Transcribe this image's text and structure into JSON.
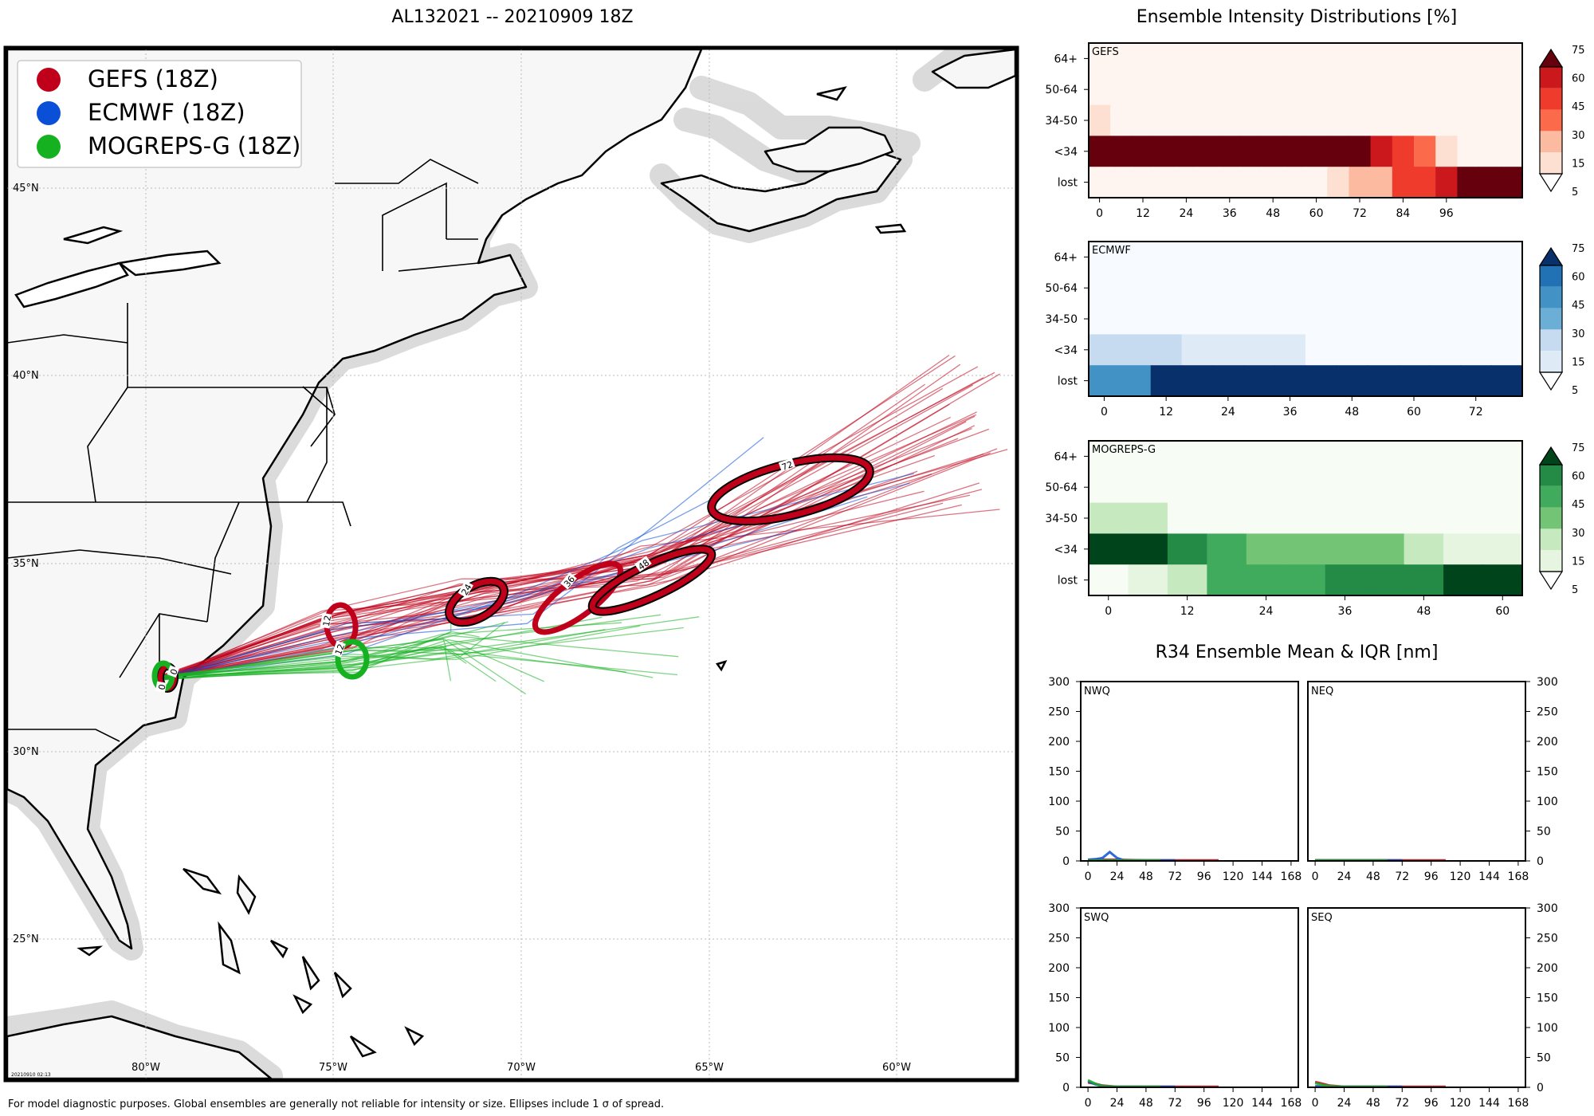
{
  "map": {
    "title": "AL132021 -- 20210909 18Z",
    "legend": [
      {
        "label": "GEFS (18Z)",
        "color": "#c0001a"
      },
      {
        "label": "ECMWF (18Z)",
        "color": "#0a4fd8"
      },
      {
        "label": "MOGREPS-G (18Z)",
        "color": "#16b121"
      }
    ],
    "lon_labels": [
      "80°W",
      "75°W",
      "70°W",
      "65°W",
      "60°W"
    ],
    "lat_labels": [
      "45°N",
      "40°N",
      "35°N",
      "30°N",
      "25°N"
    ],
    "ellipse_labels": [
      "0",
      "0",
      "12",
      "12",
      "24",
      "36",
      "48",
      "72"
    ],
    "timestamp": "20210910 02:13",
    "footnote": "For model diagnostic purposes. Global ensembles are generally not reliable for intensity or size. Ellipses include 1 σ of spread."
  },
  "colors": {
    "gefs": "#c0001a",
    "ecmwf": "#0a4fd8",
    "mogreps": "#16b121",
    "land": "#f7f7f7",
    "coast_shadow": "#c8c8c8"
  },
  "chart_data": [
    {
      "type": "heatmap",
      "title": "Ensemble Intensity Distributions [%]",
      "model": "GEFS",
      "rows": [
        "64+",
        "50-64",
        "34-50",
        "<34",
        "lost"
      ],
      "x_ticks": [
        "0",
        "12",
        "24",
        "36",
        "48",
        "60",
        "72",
        "84",
        "96"
      ],
      "x_range": [
        -3,
        117
      ],
      "bins_hours": [
        [
          -3,
          3
        ],
        [
          3,
          9
        ],
        [
          9,
          15
        ],
        [
          15,
          21
        ],
        [
          21,
          27
        ],
        [
          27,
          33
        ],
        [
          33,
          39
        ],
        [
          39,
          45
        ],
        [
          45,
          51
        ],
        [
          51,
          57
        ],
        [
          57,
          63
        ],
        [
          63,
          69
        ],
        [
          69,
          75
        ],
        [
          75,
          81
        ],
        [
          81,
          87
        ],
        [
          87,
          93
        ],
        [
          93,
          99
        ],
        [
          99,
          105
        ],
        [
          105,
          111
        ],
        [
          111,
          117
        ]
      ],
      "values": {
        "64+": [
          0,
          0,
          0,
          0,
          0,
          0,
          0,
          0,
          0,
          0,
          0,
          0,
          0,
          0,
          0,
          0,
          0,
          0,
          0,
          0
        ],
        "50-64": [
          0,
          0,
          0,
          0,
          0,
          0,
          0,
          0,
          0,
          0,
          0,
          0,
          0,
          0,
          0,
          0,
          0,
          0,
          0,
          0
        ],
        "34-50": [
          10,
          0,
          0,
          0,
          0,
          0,
          0,
          0,
          0,
          0,
          0,
          0,
          0,
          0,
          0,
          0,
          0,
          0,
          0,
          0
        ],
        "<34": [
          90,
          100,
          100,
          100,
          100,
          100,
          100,
          100,
          100,
          100,
          100,
          100,
          100,
          70,
          55,
          40,
          10,
          0,
          0,
          0
        ],
        "lost": [
          0,
          0,
          0,
          0,
          0,
          0,
          0,
          0,
          0,
          0,
          0,
          10,
          20,
          20,
          55,
          55,
          70,
          90,
          100,
          100
        ]
      },
      "colorbar_ticks": [
        "5",
        "15",
        "30",
        "45",
        "60",
        "75"
      ],
      "cmap": "Reds"
    },
    {
      "type": "heatmap",
      "model": "ECMWF",
      "rows": [
        "64+",
        "50-64",
        "34-50",
        "<34",
        "lost"
      ],
      "x_ticks": [
        "0",
        "12",
        "24",
        "36",
        "48",
        "60",
        "72"
      ],
      "x_range": [
        -3,
        81
      ],
      "bins_hours": [
        [
          -3,
          3
        ],
        [
          3,
          9
        ],
        [
          9,
          15
        ],
        [
          15,
          21
        ],
        [
          21,
          27
        ],
        [
          27,
          33
        ],
        [
          33,
          39
        ],
        [
          39,
          45
        ],
        [
          45,
          51
        ],
        [
          51,
          57
        ],
        [
          57,
          63
        ],
        [
          63,
          69
        ],
        [
          69,
          75
        ],
        [
          75,
          81
        ]
      ],
      "values": {
        "64+": [
          0,
          0,
          0,
          0,
          0,
          0,
          0,
          0,
          0,
          0,
          0,
          0,
          0,
          0
        ],
        "50-64": [
          0,
          0,
          0,
          0,
          0,
          0,
          0,
          0,
          0,
          0,
          0,
          0,
          0,
          0
        ],
        "34-50": [
          0,
          0,
          0,
          0,
          0,
          0,
          0,
          0,
          0,
          0,
          0,
          0,
          0,
          0
        ],
        "<34": [
          25,
          25,
          25,
          10,
          10,
          10,
          10,
          0,
          0,
          0,
          0,
          0,
          0,
          0
        ],
        "lost": [
          55,
          55,
          100,
          100,
          100,
          100,
          100,
          100,
          100,
          100,
          100,
          100,
          100,
          100
        ]
      },
      "colorbar_ticks": [
        "5",
        "15",
        "30",
        "45",
        "60",
        "75"
      ],
      "cmap": "Blues"
    },
    {
      "type": "heatmap",
      "model": "MOGREPS-G",
      "rows": [
        "64+",
        "50-64",
        "34-50",
        "<34",
        "lost"
      ],
      "x_ticks": [
        "0",
        "12",
        "24",
        "36",
        "48",
        "60"
      ],
      "x_range": [
        -3,
        63
      ],
      "bins_hours": [
        [
          -3,
          3
        ],
        [
          3,
          9
        ],
        [
          9,
          15
        ],
        [
          15,
          21
        ],
        [
          21,
          27
        ],
        [
          27,
          33
        ],
        [
          33,
          39
        ],
        [
          39,
          45
        ],
        [
          45,
          51
        ],
        [
          51,
          57
        ],
        [
          57,
          63
        ]
      ],
      "values": {
        "64+": [
          0,
          0,
          0,
          0,
          0,
          0,
          0,
          0,
          0,
          0,
          0
        ],
        "50-64": [
          0,
          0,
          0,
          0,
          0,
          0,
          0,
          0,
          0,
          0,
          0
        ],
        "34-50": [
          15,
          15,
          0,
          0,
          0,
          0,
          0,
          0,
          0,
          0,
          0
        ],
        "<34": [
          100,
          100,
          65,
          45,
          30,
          30,
          30,
          30,
          20,
          10,
          10
        ],
        "lost": [
          0,
          10,
          20,
          45,
          45,
          45,
          65,
          65,
          65,
          100,
          100
        ]
      },
      "colorbar_ticks": [
        "5",
        "15",
        "30",
        "45",
        "60",
        "75"
      ],
      "cmap": "Greens"
    },
    {
      "type": "line",
      "title": "R34 Ensemble Mean & IQR [nm]",
      "panels": [
        "NWQ",
        "NEQ",
        "SWQ",
        "SEQ"
      ],
      "x_ticks": [
        "0",
        "24",
        "48",
        "72",
        "96",
        "120",
        "144",
        "168"
      ],
      "y_ticks": [
        "0",
        "50",
        "100",
        "150",
        "200",
        "250",
        "300"
      ],
      "xlim": [
        -6,
        174
      ],
      "ylim": [
        0,
        300
      ],
      "series": [
        {
          "panel": "NWQ",
          "name": "GEFS",
          "x": [
            0,
            12,
            24,
            48,
            72,
            96,
            108
          ],
          "y": [
            2,
            2,
            2,
            1,
            1,
            1,
            1
          ]
        },
        {
          "panel": "NWQ",
          "name": "ECMWF",
          "x": [
            0,
            6,
            12,
            18,
            24,
            30,
            48,
            72
          ],
          "y": [
            2,
            3,
            5,
            15,
            5,
            1,
            1,
            1
          ]
        },
        {
          "panel": "NWQ",
          "name": "MOGREPS-G",
          "x": [
            0,
            24,
            48,
            60
          ],
          "y": [
            1,
            1,
            1,
            1
          ]
        },
        {
          "panel": "NEQ",
          "name": "GEFS",
          "x": [
            0,
            24,
            48,
            72,
            96,
            108
          ],
          "y": [
            1,
            1,
            1,
            1,
            1,
            1
          ]
        },
        {
          "panel": "NEQ",
          "name": "ECMWF",
          "x": [
            0,
            24,
            48,
            72
          ],
          "y": [
            1,
            1,
            1,
            1
          ]
        },
        {
          "panel": "NEQ",
          "name": "MOGREPS-G",
          "x": [
            0,
            24,
            48,
            60
          ],
          "y": [
            1,
            1,
            1,
            1
          ]
        },
        {
          "panel": "SWQ",
          "name": "GEFS",
          "x": [
            0,
            6,
            12,
            24,
            48,
            72,
            108
          ],
          "y": [
            8,
            6,
            3,
            1,
            1,
            1,
            1
          ]
        },
        {
          "panel": "SWQ",
          "name": "ECMWF",
          "x": [
            0,
            6,
            12,
            24,
            48,
            72
          ],
          "y": [
            10,
            5,
            2,
            1,
            1,
            1
          ]
        },
        {
          "panel": "SWQ",
          "name": "MOGREPS-G",
          "x": [
            0,
            6,
            12,
            24,
            48,
            60
          ],
          "y": [
            12,
            6,
            2,
            1,
            1,
            1
          ]
        },
        {
          "panel": "SEQ",
          "name": "GEFS",
          "x": [
            0,
            6,
            12,
            24,
            48,
            72,
            108
          ],
          "y": [
            9,
            6,
            3,
            1,
            1,
            1,
            1
          ]
        },
        {
          "panel": "SEQ",
          "name": "ECMWF",
          "x": [
            0,
            12,
            24,
            48,
            72
          ],
          "y": [
            2,
            1,
            1,
            1,
            1
          ]
        },
        {
          "panel": "SEQ",
          "name": "MOGREPS-G",
          "x": [
            0,
            6,
            12,
            24,
            48,
            60
          ],
          "y": [
            7,
            4,
            2,
            1,
            1,
            1
          ]
        }
      ]
    }
  ]
}
